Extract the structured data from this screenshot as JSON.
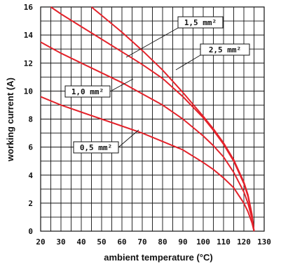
{
  "chart_data": {
    "type": "line",
    "xlabel": "ambient temperature (°C)",
    "ylabel": "working current (A)",
    "xlim": [
      20,
      130
    ],
    "ylim": [
      0,
      16
    ],
    "x_ticks": [
      20,
      30,
      40,
      50,
      60,
      70,
      80,
      90,
      100,
      110,
      120,
      130
    ],
    "y_ticks": [
      0,
      2,
      4,
      6,
      8,
      10,
      12,
      14,
      16
    ],
    "x_minor_step": 5,
    "y_minor_step": 1,
    "grid": true,
    "series_color": "#e3232b",
    "series": [
      {
        "name": "0,5 mm²",
        "x": [
          20,
          30,
          40,
          50,
          60,
          70,
          80,
          90,
          100,
          105,
          110,
          115,
          120,
          122,
          124,
          125
        ],
        "y": [
          9.6,
          9.0,
          8.5,
          8.0,
          7.5,
          7.0,
          6.4,
          5.8,
          4.9,
          4.4,
          3.8,
          3.1,
          2.0,
          1.4,
          0.6,
          0
        ]
      },
      {
        "name": "1,0 mm²",
        "x": [
          20,
          30,
          40,
          50,
          60,
          70,
          80,
          90,
          100,
          105,
          110,
          115,
          120,
          122,
          124,
          125
        ],
        "y": [
          13.5,
          12.7,
          12.0,
          11.3,
          10.6,
          9.8,
          9.0,
          8.0,
          6.8,
          6.1,
          5.3,
          4.2,
          2.8,
          2.0,
          0.9,
          0
        ]
      },
      {
        "name": "2,5 mm²",
        "x": [
          25,
          30,
          40,
          50,
          60,
          70,
          80,
          90,
          100,
          105,
          110,
          115,
          120,
          122,
          124,
          125
        ],
        "y": [
          16.0,
          15.5,
          14.6,
          13.7,
          12.8,
          11.9,
          10.9,
          9.6,
          8.1,
          7.2,
          6.2,
          5.0,
          3.4,
          2.5,
          1.1,
          0
        ]
      },
      {
        "name": "1,5 mm²",
        "x": [
          45,
          50,
          60,
          70,
          80,
          90,
          100,
          105,
          110,
          115,
          120,
          122,
          124,
          125
        ],
        "y": [
          16.0,
          15.4,
          14.2,
          12.9,
          11.5,
          9.9,
          8.2,
          7.3,
          6.3,
          5.1,
          3.5,
          2.6,
          1.2,
          0
        ]
      }
    ]
  }
}
